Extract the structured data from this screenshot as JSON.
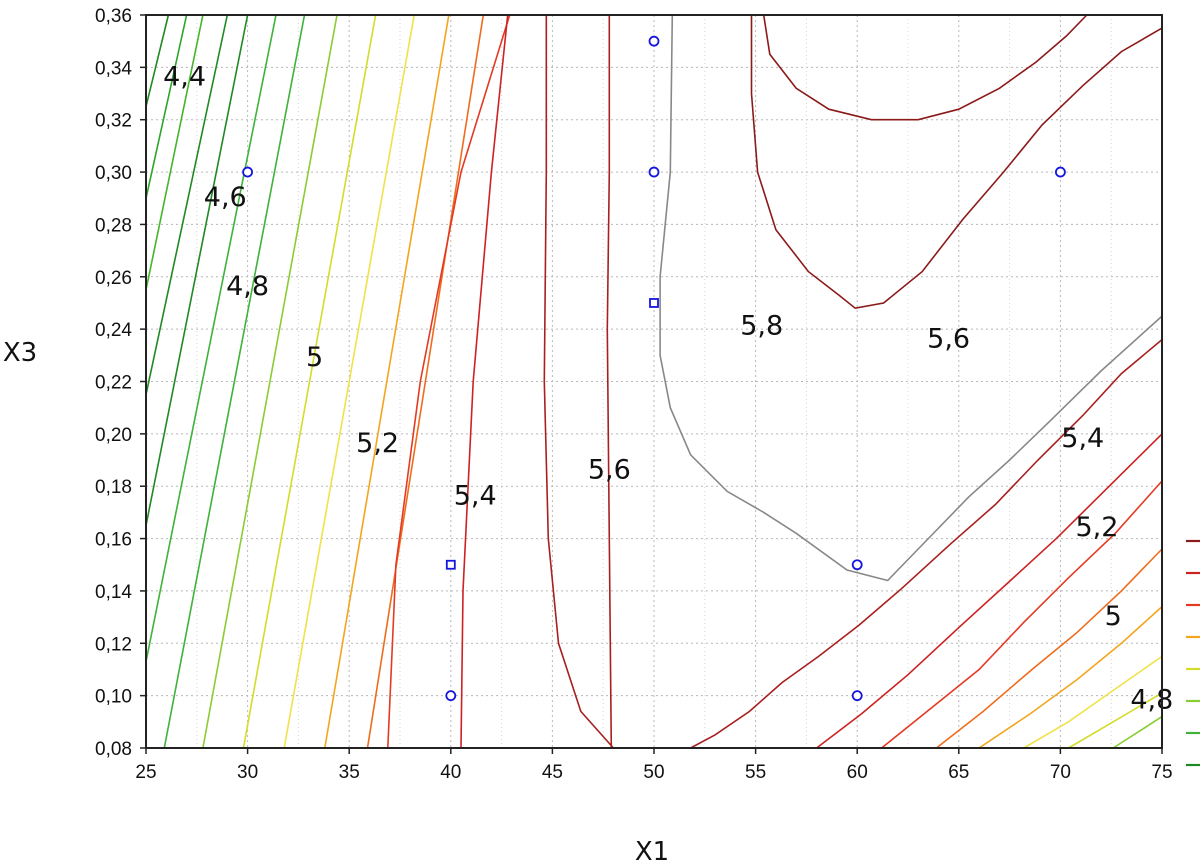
{
  "chart_data": {
    "type": "contour",
    "title": "",
    "xlabel": "X1",
    "ylabel": "X3",
    "xlim": [
      25,
      75
    ],
    "ylim": [
      0.08,
      0.36
    ],
    "x_ticks": [
      "25",
      "30",
      "35",
      "40",
      "45",
      "50",
      "55",
      "60",
      "65",
      "70",
      "75"
    ],
    "y_ticks": [
      "0,08",
      "0,10",
      "0,12",
      "0,14",
      "0,16",
      "0,18",
      "0,20",
      "0,22",
      "0,24",
      "0,26",
      "0,28",
      "0,30",
      "0,32",
      "0,34",
      "0,36"
    ],
    "grid": true,
    "grid_style": "dotted",
    "level_colors": {
      "3.8": "#1e8c1e",
      "4.0": "#2ca52c",
      "4.2": "#44b52a",
      "4.4": "#1f8a24",
      "4.6": "#3fb23a",
      "4.8": "#8acc33",
      "5.0": "#d4dc2a",
      "5.1": "#f0e24a",
      "5.2": "#f3a51e",
      "5.3": "#ef6c1d",
      "5.4": "#e43a24",
      "5.5": "#cc2222",
      "5.6": "#a81f1f",
      "5.8": "#8b1a1a"
    },
    "contour_labels": [
      {
        "text": "4,4",
        "x": 26.9,
        "y": 0.333
      },
      {
        "text": "4,6",
        "x": 28.9,
        "y": 0.287
      },
      {
        "text": "4,8",
        "x": 30.0,
        "y": 0.253
      },
      {
        "text": "5",
        "x": 33.3,
        "y": 0.226
      },
      {
        "text": "5,2",
        "x": 36.4,
        "y": 0.193
      },
      {
        "text": "5,4",
        "x": 41.2,
        "y": 0.173
      },
      {
        "text": "5,6",
        "x": 47.8,
        "y": 0.183
      },
      {
        "text": "5,8",
        "x": 55.3,
        "y": 0.238
      },
      {
        "text": "5,6",
        "x": 64.5,
        "y": 0.233
      },
      {
        "text": "5,4",
        "x": 71.1,
        "y": 0.195
      },
      {
        "text": "5,2",
        "x": 71.8,
        "y": 0.161
      },
      {
        "text": "5",
        "x": 72.6,
        "y": 0.127
      },
      {
        "text": "4,8",
        "x": 74.5,
        "y": 0.095
      }
    ],
    "contours": [
      {
        "level": 3.8,
        "points": [
          [
            25,
            0.325
          ],
          [
            26.1,
            0.36
          ]
        ]
      },
      {
        "level": 4.0,
        "points": [
          [
            25,
            0.29
          ],
          [
            27.0,
            0.36
          ]
        ]
      },
      {
        "level": 4.2,
        "points": [
          [
            25,
            0.255
          ],
          [
            27.8,
            0.36
          ]
        ]
      },
      {
        "level": 4.4,
        "points": [
          [
            25,
            0.215
          ],
          [
            29.0,
            0.36
          ]
        ]
      },
      {
        "level": 4.4,
        "points": [
          [
            25,
            0.165
          ],
          [
            30.0,
            0.36
          ]
        ]
      },
      {
        "level": 4.6,
        "points": [
          [
            25,
            0.113
          ],
          [
            31.4,
            0.36
          ]
        ]
      },
      {
        "level": 4.6,
        "points": [
          [
            25.9,
            0.08
          ],
          [
            32.8,
            0.36
          ]
        ]
      },
      {
        "level": 4.8,
        "points": [
          [
            27.8,
            0.08
          ],
          [
            34.4,
            0.36
          ]
        ]
      },
      {
        "level": 5.0,
        "points": [
          [
            29.8,
            0.08
          ],
          [
            36.3,
            0.36
          ]
        ]
      },
      {
        "level": 5.1,
        "points": [
          [
            31.8,
            0.08
          ],
          [
            38.2,
            0.36
          ]
        ]
      },
      {
        "level": 5.2,
        "points": [
          [
            33.8,
            0.08
          ],
          [
            39.9,
            0.36
          ]
        ]
      },
      {
        "level": 5.3,
        "points": [
          [
            35.9,
            0.08
          ],
          [
            41.6,
            0.36
          ]
        ]
      },
      {
        "level": 5.4,
        "points": [
          [
            36.9,
            0.08
          ],
          [
            37.3,
            0.15
          ],
          [
            38.5,
            0.22
          ],
          [
            40.5,
            0.3
          ],
          [
            42.9,
            0.36
          ]
        ]
      },
      {
        "level": 5.5,
        "points": [
          [
            40.5,
            0.08
          ],
          [
            40.6,
            0.14
          ],
          [
            41.1,
            0.22
          ],
          [
            42.0,
            0.3
          ],
          [
            42.8,
            0.36
          ]
        ]
      },
      {
        "level": 5.6,
        "points": [
          [
            44.7,
            0.36
          ],
          [
            44.7,
            0.3
          ],
          [
            44.6,
            0.22
          ],
          [
            44.8,
            0.16
          ],
          [
            45.3,
            0.12
          ],
          [
            46.4,
            0.094
          ],
          [
            48.0,
            0.08
          ]
        ]
      },
      {
        "level": 5.6,
        "points": [
          [
            47.8,
            0.36
          ],
          [
            47.8,
            0.3
          ],
          [
            47.7,
            0.24
          ],
          [
            47.8,
            0.16
          ],
          [
            47.9,
            0.08
          ]
        ]
      },
      {
        "level": 5.6,
        "points": [
          [
            51.8,
            0.08
          ],
          [
            53.0,
            0.085
          ],
          [
            54.7,
            0.094
          ],
          [
            56.3,
            0.105
          ],
          [
            58.1,
            0.115
          ],
          [
            60.1,
            0.127
          ],
          [
            62.2,
            0.141
          ],
          [
            64.6,
            0.158
          ],
          [
            66.8,
            0.173
          ],
          [
            68.9,
            0.19
          ],
          [
            71.1,
            0.207
          ],
          [
            73.0,
            0.223
          ],
          [
            75,
            0.236
          ]
        ]
      },
      {
        "level": 5.7,
        "points": [
          [
            50.9,
            0.36
          ],
          [
            50.8,
            0.3
          ],
          [
            50.3,
            0.26
          ],
          [
            50.3,
            0.23
          ],
          [
            50.8,
            0.21
          ],
          [
            51.8,
            0.192
          ],
          [
            53.6,
            0.178
          ],
          [
            55.4,
            0.17
          ],
          [
            57.0,
            0.162
          ],
          [
            59.5,
            0.148
          ],
          [
            61.5,
            0.144
          ],
          [
            63.0,
            0.156
          ],
          [
            65.5,
            0.176
          ],
          [
            67.5,
            0.19
          ],
          [
            69.5,
            0.205
          ],
          [
            72.0,
            0.224
          ],
          [
            75,
            0.245
          ]
        ]
      },
      {
        "level": 5.8,
        "points": [
          [
            54.8,
            0.36
          ],
          [
            54.8,
            0.33
          ],
          [
            55.1,
            0.3
          ],
          [
            56.0,
            0.278
          ],
          [
            57.6,
            0.262
          ],
          [
            59.1,
            0.253
          ],
          [
            59.9,
            0.248
          ],
          [
            61.3,
            0.25
          ],
          [
            63.2,
            0.262
          ],
          [
            65.2,
            0.282
          ],
          [
            67.2,
            0.3
          ],
          [
            69.1,
            0.318
          ],
          [
            71.1,
            0.333
          ],
          [
            73.0,
            0.346
          ],
          [
            75,
            0.355
          ]
        ]
      },
      {
        "level": 5.8,
        "points": [
          [
            55.4,
            0.36
          ],
          [
            55.7,
            0.345
          ],
          [
            57.0,
            0.332
          ],
          [
            58.6,
            0.324
          ],
          [
            60.7,
            0.32
          ],
          [
            63.0,
            0.32
          ],
          [
            65.0,
            0.324
          ],
          [
            67.0,
            0.332
          ],
          [
            68.8,
            0.342
          ],
          [
            70.3,
            0.352
          ],
          [
            71.3,
            0.36
          ]
        ]
      },
      {
        "level": 5.5,
        "points": [
          [
            58.0,
            0.08
          ],
          [
            60.2,
            0.093
          ],
          [
            62.5,
            0.108
          ],
          [
            65.0,
            0.126
          ],
          [
            67.4,
            0.143
          ],
          [
            69.8,
            0.16
          ],
          [
            72.4,
            0.18
          ],
          [
            75,
            0.2
          ]
        ]
      },
      {
        "level": 5.4,
        "points": [
          [
            61.2,
            0.08
          ],
          [
            63.6,
            0.095
          ],
          [
            66.0,
            0.11
          ],
          [
            68.2,
            0.128
          ],
          [
            70.4,
            0.145
          ],
          [
            72.7,
            0.162
          ],
          [
            75,
            0.182
          ]
        ]
      },
      {
        "level": 5.3,
        "points": [
          [
            63.9,
            0.08
          ],
          [
            66.2,
            0.094
          ],
          [
            68.6,
            0.11
          ],
          [
            70.8,
            0.124
          ],
          [
            73.0,
            0.14
          ],
          [
            75,
            0.156
          ]
        ]
      },
      {
        "level": 5.2,
        "points": [
          [
            66.0,
            0.08
          ],
          [
            68.5,
            0.093
          ],
          [
            70.8,
            0.106
          ],
          [
            73.0,
            0.12
          ],
          [
            75,
            0.134
          ]
        ]
      },
      {
        "level": 5.1,
        "points": [
          [
            68.2,
            0.08
          ],
          [
            70.4,
            0.09
          ],
          [
            72.6,
            0.102
          ],
          [
            75,
            0.115
          ]
        ]
      },
      {
        "level": 5.0,
        "points": [
          [
            70.4,
            0.08
          ],
          [
            72.6,
            0.09
          ],
          [
            75,
            0.101
          ]
        ]
      },
      {
        "level": 4.8,
        "points": [
          [
            72.6,
            0.08
          ],
          [
            74.0,
            0.087
          ],
          [
            75,
            0.092
          ]
        ]
      }
    ],
    "design_points": [
      {
        "x": 30,
        "y": 0.3,
        "marker": "circle"
      },
      {
        "x": 40,
        "y": 0.15,
        "marker": "square"
      },
      {
        "x": 40,
        "y": 0.1,
        "marker": "circle"
      },
      {
        "x": 50,
        "y": 0.35,
        "marker": "circle"
      },
      {
        "x": 50,
        "y": 0.3,
        "marker": "circle"
      },
      {
        "x": 50,
        "y": 0.25,
        "marker": "square"
      },
      {
        "x": 60,
        "y": 0.15,
        "marker": "circle"
      },
      {
        "x": 60,
        "y": 0.1,
        "marker": "circle"
      },
      {
        "x": 70,
        "y": 0.3,
        "marker": "circle"
      }
    ],
    "marker_color": "#1515e0",
    "legend_swatch_colors": [
      "#8b1a1a",
      "#cc2222",
      "#e43a24",
      "#f3a51e",
      "#d4dc2a",
      "#8acc33",
      "#3fb23a",
      "#1f8a24"
    ],
    "legend_position": "right (clipped)"
  }
}
